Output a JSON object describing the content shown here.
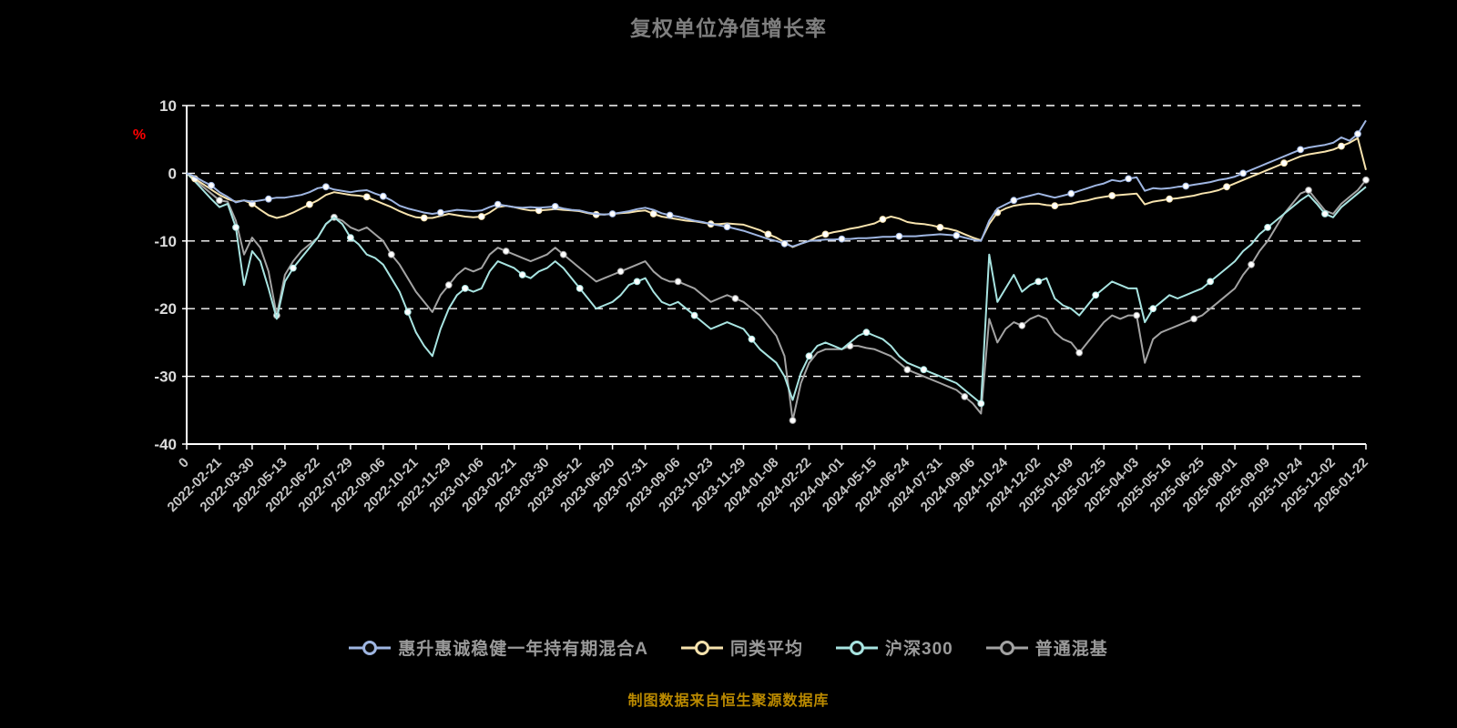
{
  "page": {
    "title": "复权单位净值增长率",
    "title_color": "#7f7f7f",
    "source_note": "制图数据来自恒生聚源数据库",
    "note_color": "#bb8a00",
    "background_color": "#000000"
  },
  "chart_data": {
    "type": "line",
    "title": "复权单位净值增长率",
    "ylabel": "%",
    "ylabel_color": "#ff0000",
    "ylim": [
      -40,
      10
    ],
    "yticks": [
      10,
      0,
      -10,
      -20,
      -30,
      -40
    ],
    "grid": {
      "horizontal_dashed": true,
      "color": "#ffffff"
    },
    "axis_color": "#ffffff",
    "y_tick_label_color": "#dcdcdc",
    "x_tick_label_color": "#c4c4c4",
    "legend_position": "bottom",
    "x_range": [
      0,
      36
    ],
    "x_step": 0.25,
    "x_tick_labels": [
      "0",
      "2022-02-21",
      "2022-03-30",
      "2022-05-13",
      "2022-06-22",
      "2022-07-29",
      "2022-09-06",
      "2022-10-21",
      "2022-11-29",
      "2023-01-06",
      "2023-02-21",
      "2023-03-30",
      "2023-05-12",
      "2023-06-20",
      "2023-07-31",
      "2023-09-06",
      "2023-10-23",
      "2023-11-29",
      "2024-01-08",
      "2024-02-22",
      "2024-04-01",
      "2024-05-15",
      "2024-06-24",
      "2024-07-31",
      "2024-09-06",
      "2024-10-24",
      "2024-12-02",
      "2025-01-09",
      "2025-02-25",
      "2025-04-03",
      "2025-05-16",
      "2025-06-25",
      "2025-08-01",
      "2025-09-09",
      "2025-10-24",
      "2025-12-02",
      "2026-01-22"
    ],
    "series": [
      {
        "name": "惠升惠诚稳健一年持有期混合A",
        "color": "#9fb6e2",
        "values": [
          0,
          -0.5,
          -1.2,
          -1.8,
          -2.8,
          -3.5,
          -4.3,
          -4.0,
          -4.2,
          -4.0,
          -3.8,
          -3.6,
          -3.6,
          -3.4,
          -3.2,
          -2.8,
          -2.2,
          -2.0,
          -2.4,
          -2.6,
          -2.8,
          -2.6,
          -2.5,
          -3.0,
          -3.4,
          -4.0,
          -4.8,
          -5.2,
          -5.5,
          -5.8,
          -6.0,
          -5.8,
          -5.6,
          -5.4,
          -5.5,
          -5.6,
          -5.5,
          -5.0,
          -4.6,
          -4.8,
          -5.0,
          -5.1,
          -5.0,
          -5.1,
          -5.0,
          -4.9,
          -5.2,
          -5.4,
          -5.5,
          -5.8,
          -6.0,
          -6.1,
          -6.0,
          -5.8,
          -5.6,
          -5.3,
          -5.1,
          -5.4,
          -5.9,
          -6.2,
          -6.4,
          -6.7,
          -7.0,
          -7.2,
          -7.5,
          -7.7,
          -7.9,
          -8.2,
          -8.5,
          -8.9,
          -9.3,
          -9.7,
          -10.0,
          -10.4,
          -10.8,
          -10.4,
          -10.0,
          -9.9,
          -9.8,
          -9.8,
          -9.7,
          -9.7,
          -9.6,
          -9.6,
          -9.5,
          -9.4,
          -9.4,
          -9.3,
          -9.3,
          -9.3,
          -9.2,
          -9.1,
          -9.0,
          -9.1,
          -9.2,
          -9.5,
          -9.8,
          -10.0,
          -7.0,
          -5.2,
          -4.6,
          -4.0,
          -3.6,
          -3.3,
          -3.0,
          -3.3,
          -3.6,
          -3.3,
          -3.0,
          -2.6,
          -2.2,
          -1.8,
          -1.5,
          -1.0,
          -1.2,
          -0.8,
          -0.6,
          -2.6,
          -2.2,
          -2.3,
          -2.2,
          -2.0,
          -1.9,
          -1.7,
          -1.5,
          -1.3,
          -1.0,
          -0.8,
          -0.5,
          0.0,
          0.5,
          1.0,
          1.5,
          2.0,
          2.5,
          3.0,
          3.5,
          3.8,
          4.0,
          4.2,
          4.5,
          5.3,
          4.8,
          5.8,
          7.8
        ]
      },
      {
        "name": "同类平均",
        "color": "#f7e3ae",
        "values": [
          0,
          -0.8,
          -1.6,
          -2.4,
          -3.2,
          -3.8,
          -4.2,
          -4.0,
          -4.5,
          -5.4,
          -6.2,
          -6.6,
          -6.3,
          -5.8,
          -5.2,
          -4.6,
          -4.0,
          -3.2,
          -2.8,
          -3.0,
          -3.2,
          -3.3,
          -3.5,
          -4.0,
          -4.5,
          -5.0,
          -5.6,
          -6.1,
          -6.5,
          -6.6,
          -6.6,
          -6.3,
          -6.0,
          -6.2,
          -6.4,
          -6.5,
          -6.4,
          -5.8,
          -5.0,
          -4.8,
          -5.0,
          -5.3,
          -5.5,
          -5.5,
          -5.4,
          -5.3,
          -5.4,
          -5.5,
          -5.6,
          -5.9,
          -6.1,
          -6.1,
          -6.0,
          -5.9,
          -5.8,
          -5.6,
          -5.5,
          -6.0,
          -6.4,
          -6.6,
          -6.8,
          -7.0,
          -7.1,
          -7.3,
          -7.5,
          -7.5,
          -7.4,
          -7.5,
          -7.6,
          -8.0,
          -8.4,
          -9.0,
          -9.5,
          -10.2,
          -10.9,
          -10.4,
          -10.0,
          -9.4,
          -9.0,
          -8.7,
          -8.5,
          -8.2,
          -8.0,
          -7.7,
          -7.4,
          -6.8,
          -6.4,
          -6.7,
          -7.2,
          -7.4,
          -7.5,
          -7.7,
          -8.0,
          -8.2,
          -8.5,
          -9.0,
          -9.5,
          -9.9,
          -7.5,
          -5.8,
          -5.2,
          -4.8,
          -4.6,
          -4.5,
          -4.5,
          -4.7,
          -4.8,
          -4.6,
          -4.5,
          -4.2,
          -4.0,
          -3.7,
          -3.5,
          -3.3,
          -3.2,
          -3.1,
          -3.0,
          -4.6,
          -4.2,
          -4.0,
          -3.8,
          -3.7,
          -3.5,
          -3.3,
          -3.0,
          -2.8,
          -2.5,
          -2.0,
          -1.5,
          -1.0,
          -0.5,
          0.0,
          0.5,
          1.0,
          1.5,
          2.0,
          2.5,
          2.8,
          3.0,
          3.2,
          3.5,
          4.0,
          4.5,
          5.2,
          0.5
        ]
      },
      {
        "name": "沪深300",
        "color": "#a8e4e1",
        "values": [
          0,
          -1.2,
          -2.5,
          -3.8,
          -5.0,
          -4.5,
          -8.0,
          -16.5,
          -11.5,
          -13.0,
          -17.0,
          -21.5,
          -16.0,
          -14.0,
          -12.5,
          -11.0,
          -9.5,
          -7.5,
          -6.5,
          -7.5,
          -9.5,
          -10.5,
          -12.0,
          -12.5,
          -13.5,
          -15.5,
          -17.5,
          -20.5,
          -23.5,
          -25.5,
          -27.0,
          -23.0,
          -20.0,
          -18.0,
          -17.0,
          -17.5,
          -17.0,
          -14.5,
          -13.0,
          -13.5,
          -14.0,
          -15.0,
          -15.5,
          -14.5,
          -14.0,
          -13.0,
          -14.0,
          -15.5,
          -17.0,
          -18.5,
          -20.0,
          -19.5,
          -19.0,
          -18.0,
          -16.5,
          -16.0,
          -15.5,
          -17.5,
          -19.0,
          -19.5,
          -19.0,
          -20.0,
          -21.0,
          -22.0,
          -23.0,
          -22.5,
          -22.0,
          -22.5,
          -23.0,
          -24.5,
          -26.0,
          -27.0,
          -28.0,
          -30.0,
          -33.5,
          -29.5,
          -27.0,
          -25.5,
          -25.0,
          -25.5,
          -26.0,
          -25.0,
          -24.0,
          -23.5,
          -24.0,
          -24.5,
          -25.5,
          -27.0,
          -28.0,
          -28.5,
          -29.0,
          -29.5,
          -30.0,
          -30.5,
          -31.0,
          -32.0,
          -33.0,
          -34.0,
          -12.0,
          -19.0,
          -17.0,
          -15.0,
          -17.5,
          -16.5,
          -16.0,
          -15.5,
          -18.5,
          -19.5,
          -20.0,
          -21.0,
          -19.5,
          -18.0,
          -17.0,
          -16.0,
          -16.5,
          -17.0,
          -17.0,
          -22.0,
          -20.0,
          -19.0,
          -18.0,
          -18.5,
          -18.0,
          -17.5,
          -17.0,
          -16.0,
          -15.0,
          -14.0,
          -13.0,
          -11.5,
          -10.5,
          -9.0,
          -8.0,
          -7.0,
          -6.0,
          -5.0,
          -4.0,
          -3.2,
          -4.5,
          -6.0,
          -6.5,
          -5.0,
          -4.0,
          -3.0,
          -2.0
        ]
      },
      {
        "name": "普通混基",
        "color": "#a3a3a3",
        "values": [
          0,
          -1.0,
          -2.0,
          -3.0,
          -4.0,
          -4.2,
          -7.0,
          -12.0,
          -9.5,
          -11.0,
          -14.5,
          -21.0,
          -15.0,
          -13.0,
          -11.5,
          -10.5,
          -9.5,
          -7.5,
          -6.5,
          -7.0,
          -8.0,
          -8.5,
          -8.0,
          -9.0,
          -10.0,
          -12.0,
          -13.5,
          -15.5,
          -17.5,
          -19.0,
          -20.5,
          -18.0,
          -16.5,
          -15.0,
          -14.0,
          -14.5,
          -14.0,
          -12.0,
          -11.0,
          -11.5,
          -12.0,
          -12.5,
          -13.0,
          -12.5,
          -12.0,
          -11.0,
          -12.0,
          -13.0,
          -14.0,
          -15.0,
          -16.0,
          -15.5,
          -15.0,
          -14.5,
          -14.0,
          -13.5,
          -13.0,
          -14.5,
          -15.5,
          -16.0,
          -16.0,
          -16.5,
          -17.0,
          -18.0,
          -19.0,
          -18.5,
          -18.0,
          -18.5,
          -19.0,
          -20.0,
          -21.0,
          -22.5,
          -24.0,
          -27.0,
          -36.5,
          -31.0,
          -28.0,
          -26.5,
          -26.0,
          -26.0,
          -26.0,
          -25.5,
          -25.5,
          -25.8,
          -26.0,
          -26.5,
          -27.0,
          -28.0,
          -29.0,
          -29.5,
          -30.0,
          -30.5,
          -31.0,
          -31.5,
          -32.0,
          -33.0,
          -34.0,
          -35.5,
          -21.5,
          -25.0,
          -23.0,
          -22.0,
          -22.5,
          -21.5,
          -21.0,
          -21.5,
          -23.5,
          -24.5,
          -25.0,
          -26.5,
          -25.0,
          -23.5,
          -22.0,
          -21.0,
          -21.5,
          -21.0,
          -21.0,
          -28.0,
          -24.5,
          -23.5,
          -23.0,
          -22.5,
          -22.0,
          -21.5,
          -21.0,
          -20.0,
          -19.0,
          -18.0,
          -17.0,
          -15.0,
          -13.5,
          -11.5,
          -10.0,
          -8.0,
          -6.0,
          -4.5,
          -3.0,
          -2.5,
          -4.0,
          -5.5,
          -6.0,
          -4.5,
          -3.5,
          -2.5,
          -1.0
        ]
      }
    ]
  }
}
